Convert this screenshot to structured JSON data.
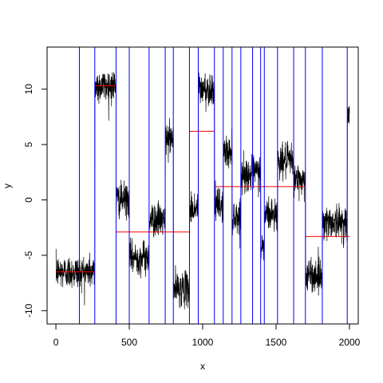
{
  "chart_data": {
    "type": "line",
    "xlabel": "x",
    "ylabel": "y",
    "xlim": [
      -60,
      2060
    ],
    "ylim": [
      -11.2,
      13.8
    ],
    "x_ticks": [
      0,
      500,
      1000,
      1500,
      2000
    ],
    "y_ticks": [
      -10,
      -5,
      0,
      5,
      10
    ],
    "colors": {
      "series": "#000000",
      "changepoints": "#0000ff",
      "fitted_mean": "#ff0000"
    },
    "n_points": 2000,
    "noise_sd": 0.75,
    "segments": [
      {
        "x0": 0,
        "x1": 160,
        "mean": -6.5
      },
      {
        "x0": 160,
        "x1": 265,
        "mean": -6.5
      },
      {
        "x0": 265,
        "x1": 410,
        "mean": 10.3
      },
      {
        "x0": 410,
        "x1": 500,
        "mean": 0.0
      },
      {
        "x0": 500,
        "x1": 635,
        "mean": -5.2
      },
      {
        "x0": 635,
        "x1": 745,
        "mean": -1.8
      },
      {
        "x0": 745,
        "x1": 800,
        "mean": 5.5
      },
      {
        "x0": 800,
        "x1": 910,
        "mean": -8.0
      },
      {
        "x0": 910,
        "x1": 970,
        "mean": -0.8
      },
      {
        "x0": 970,
        "x1": 1080,
        "mean": 10.0
      },
      {
        "x0": 1080,
        "x1": 1140,
        "mean": -0.5
      },
      {
        "x0": 1140,
        "x1": 1200,
        "mean": 4.3
      },
      {
        "x0": 1200,
        "x1": 1260,
        "mean": -1.5
      },
      {
        "x0": 1260,
        "x1": 1340,
        "mean": 2.3
      },
      {
        "x0": 1340,
        "x1": 1395,
        "mean": 2.5
      },
      {
        "x0": 1395,
        "x1": 1420,
        "mean": -4.3
      },
      {
        "x0": 1420,
        "x1": 1510,
        "mean": -1.3
      },
      {
        "x0": 1510,
        "x1": 1620,
        "mean": 3.5
      },
      {
        "x0": 1620,
        "x1": 1700,
        "mean": 1.8
      },
      {
        "x0": 1700,
        "x1": 1815,
        "mean": -6.8
      },
      {
        "x0": 1815,
        "x1": 1985,
        "mean": -2.0
      },
      {
        "x0": 1985,
        "x1": 2000,
        "mean": 7.5
      }
    ],
    "changepoints": [
      160,
      265,
      410,
      500,
      635,
      745,
      800,
      910,
      970,
      1080,
      1140,
      1200,
      1260,
      1340,
      1395,
      1420,
      1510,
      1620,
      1700,
      1815,
      1985
    ],
    "fitted_segments": [
      {
        "x0": 0,
        "x1": 265,
        "y": -6.5
      },
      {
        "x0": 265,
        "x1": 410,
        "y": 10.3
      },
      {
        "x0": 410,
        "x1": 910,
        "y": -2.9
      },
      {
        "x0": 910,
        "x1": 1080,
        "y": 6.2
      },
      {
        "x0": 1080,
        "x1": 1700,
        "y": 1.2
      },
      {
        "x0": 1700,
        "x1": 2000,
        "y": -3.3
      }
    ]
  }
}
